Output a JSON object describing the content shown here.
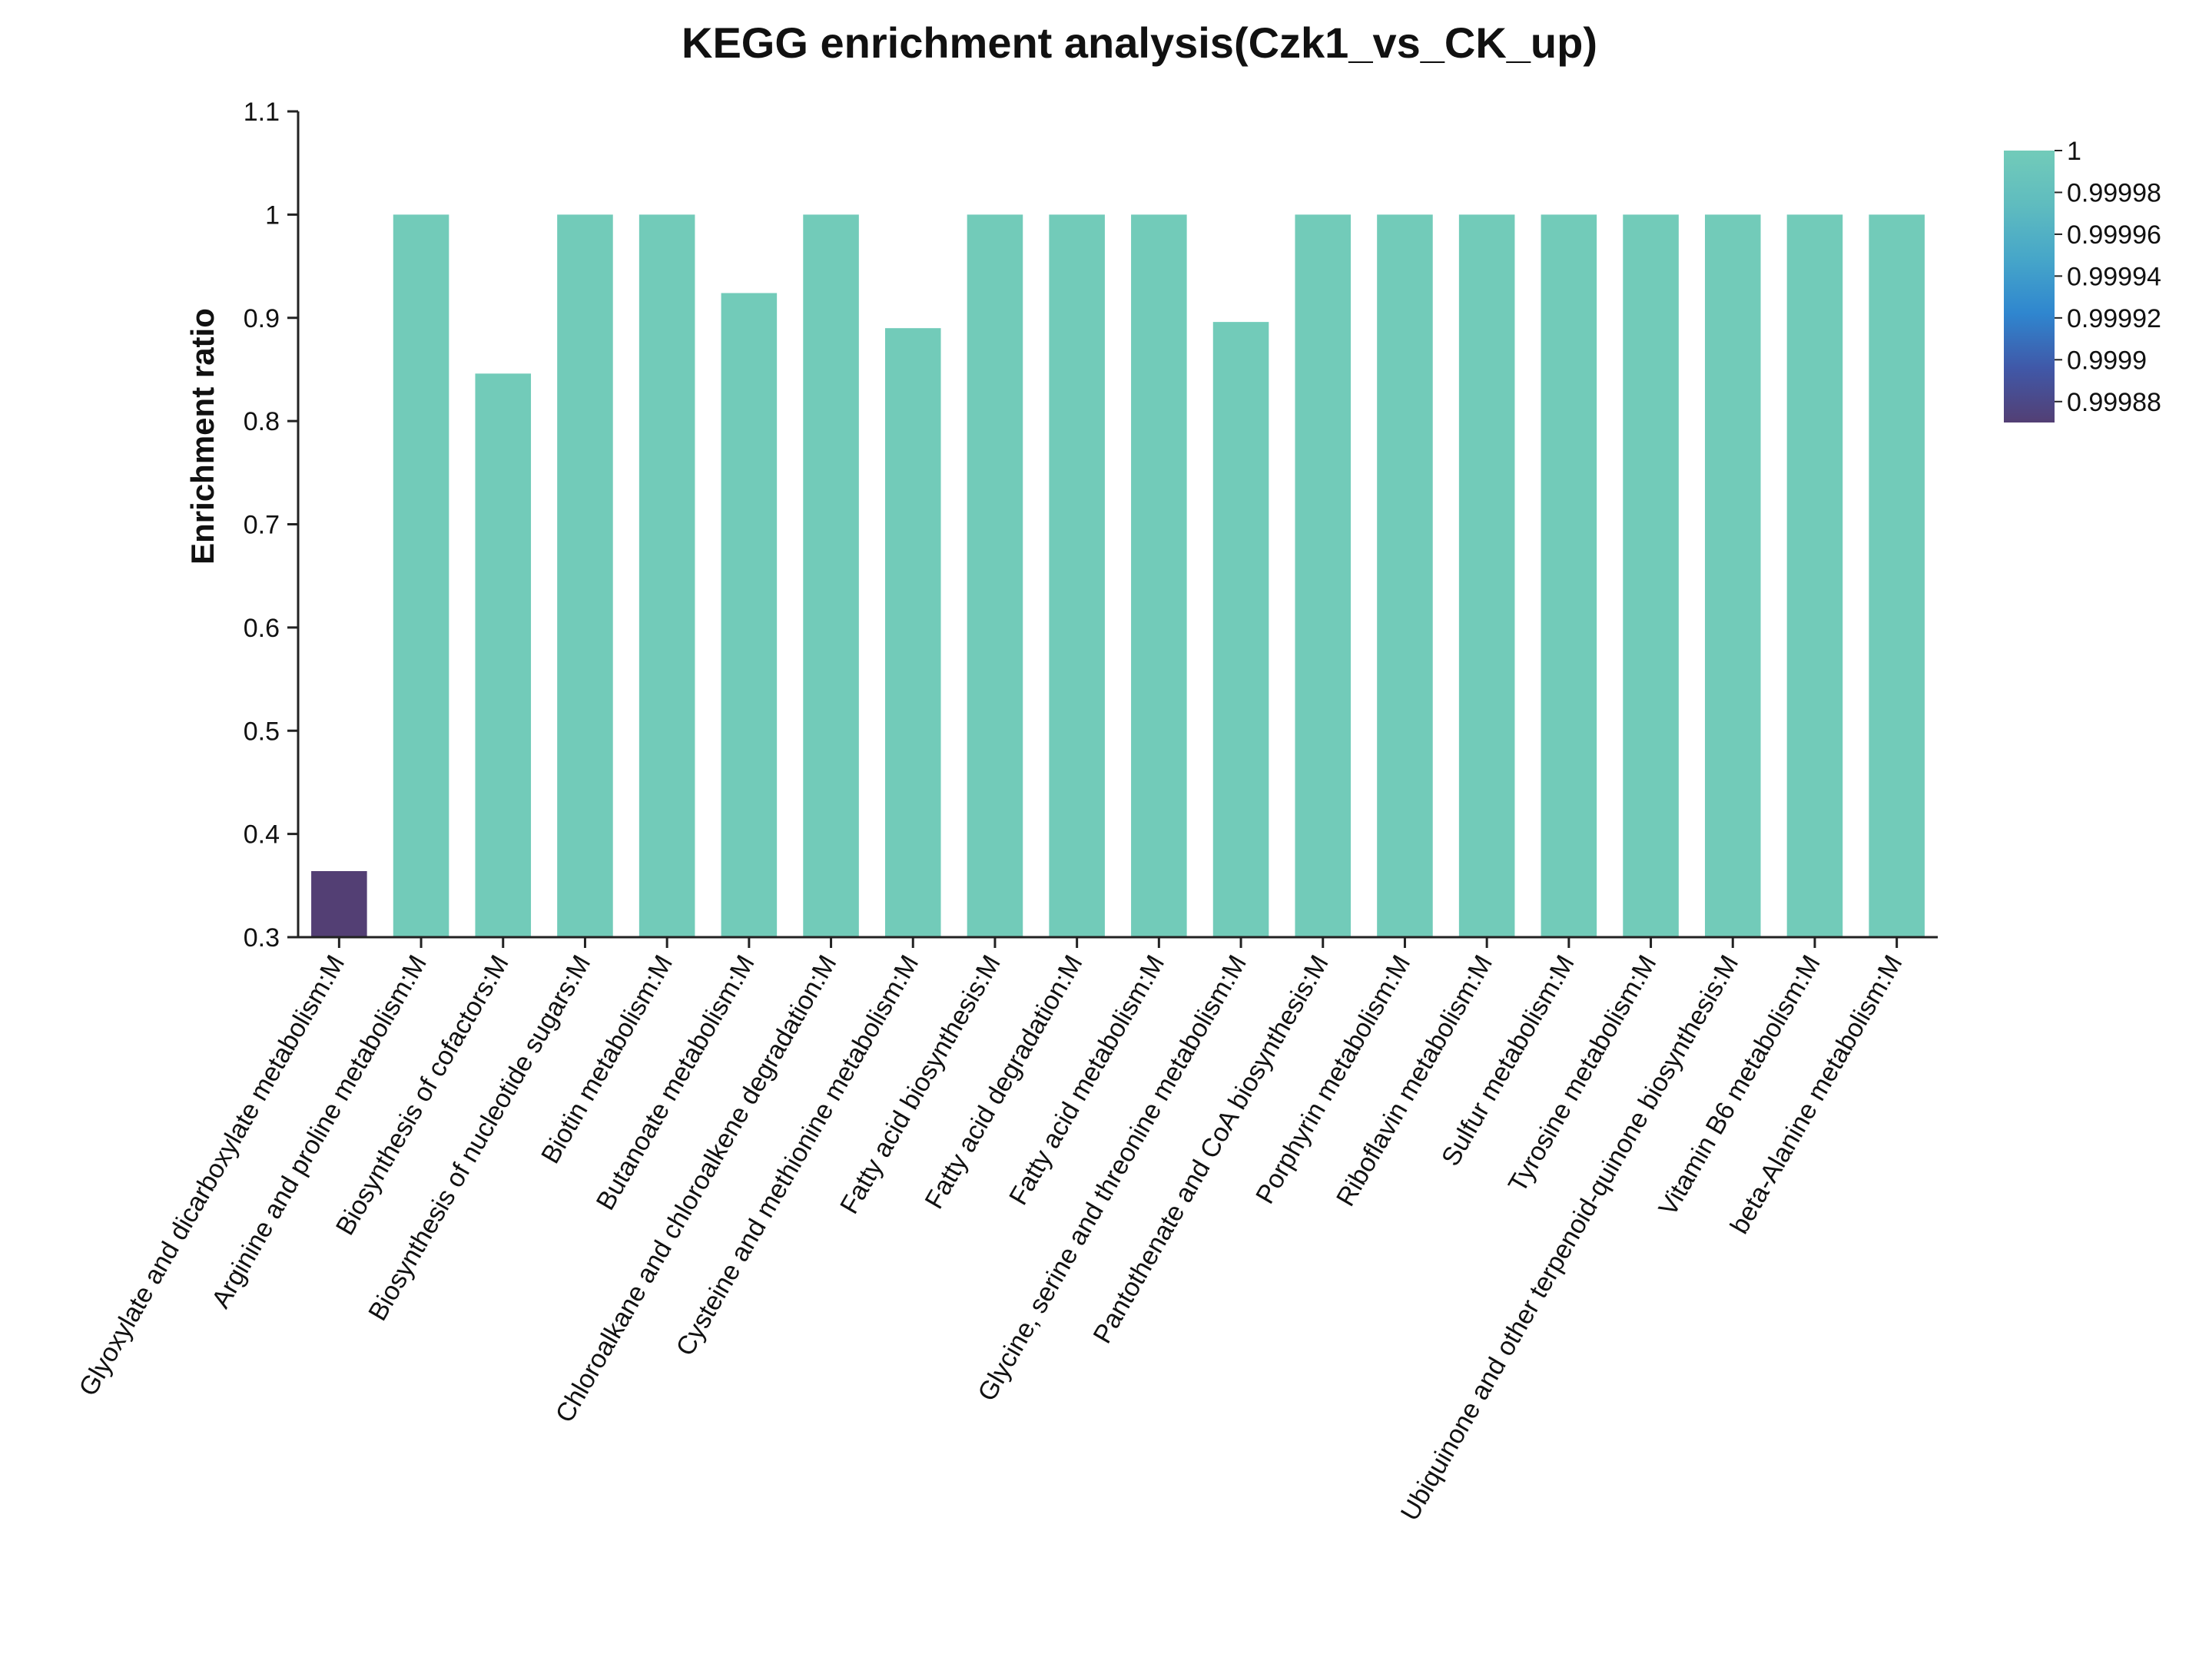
{
  "chart_data": {
    "type": "bar",
    "title": "KEGG enrichment analysis(Czk1_vs_CK_up)",
    "xlabel": "",
    "ylabel": "Enrichment ratio",
    "ylim": [
      0.3,
      1.1
    ],
    "yticks": [
      "0.3",
      "0.4",
      "0.5",
      "0.6",
      "0.7",
      "0.8",
      "0.9",
      "1",
      "1.1"
    ],
    "categories": [
      "Glyoxylate and dicarboxylate metabolism:M",
      "Arginine and proline metabolism:M",
      "Biosynthesis of cofactors:M",
      "Biosynthesis of nucleotide sugars:M",
      "Biotin metabolism:M",
      "Butanoate metabolism:M",
      "Chloroalkane and chloroalkene degradation:M",
      "Cysteine and methionine metabolism:M",
      "Fatty acid biosynthesis:M",
      "Fatty acid degradation:M",
      "Fatty acid metabolism:M",
      "Glycine, serine and threonine metabolism:M",
      "Pantothenate and CoA biosynthesis:M",
      "Porphyrin metabolism:M",
      "Riboflavin metabolism:M",
      "Sulfur metabolism:M",
      "Tyrosine metabolism:M",
      "Ubiquinone and other terpenoid-quinone biosynthesis:M",
      "Vitamin B6 metabolism:M",
      "beta-Alanine metabolism:M"
    ],
    "values": [
      0.364,
      1,
      0.846,
      1,
      1,
      0.924,
      1,
      0.89,
      1,
      1,
      1,
      0.896,
      1,
      1,
      1,
      1,
      1,
      1,
      1,
      1
    ],
    "color_values": [
      0.99987,
      1,
      1,
      1,
      1,
      1,
      1,
      1,
      1,
      1,
      1,
      1,
      1,
      1,
      1,
      1,
      1,
      1,
      1,
      1
    ],
    "colorbar": {
      "range": [
        0.99987,
        1
      ],
      "ticks": [
        "1",
        "0.99998",
        "0.99996",
        "0.99994",
        "0.99992",
        "0.9999",
        "0.99988"
      ],
      "tick_values": [
        1,
        0.99998,
        0.99996,
        0.99994,
        0.99992,
        0.9999,
        0.99988
      ],
      "colors": [
        "#533f74",
        "#4058a8",
        "#2f86cf",
        "#46a6c9",
        "#5fbcbf",
        "#72cbb9"
      ]
    },
    "bar_color": "#72cbb9",
    "legend_position": "top-right"
  }
}
